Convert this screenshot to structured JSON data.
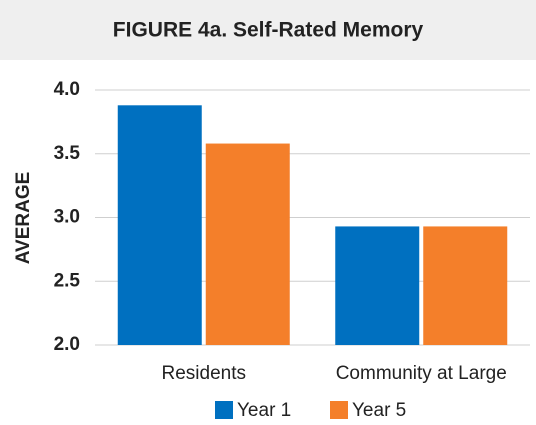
{
  "chart_data": {
    "type": "bar",
    "title": "FIGURE 4a. Self-Rated Memory",
    "y_label": "AVERAGE",
    "categories": [
      "Residents",
      "Community at Large"
    ],
    "series": [
      {
        "name": "Year 1",
        "color": "#0070c0",
        "values": [
          3.88,
          2.93
        ]
      },
      {
        "name": "Year 5",
        "color": "#f47f2a",
        "values": [
          3.58,
          2.93
        ]
      }
    ],
    "ylim": [
      2.0,
      4.0
    ],
    "yticks": [
      {
        "value": 2.0,
        "label": "2.0"
      },
      {
        "value": 2.5,
        "label": "2.5"
      },
      {
        "value": 3.0,
        "label": "3.0"
      },
      {
        "value": 3.5,
        "label": "3.5"
      },
      {
        "value": 4.0,
        "label": "4.0"
      }
    ],
    "grid": true
  }
}
